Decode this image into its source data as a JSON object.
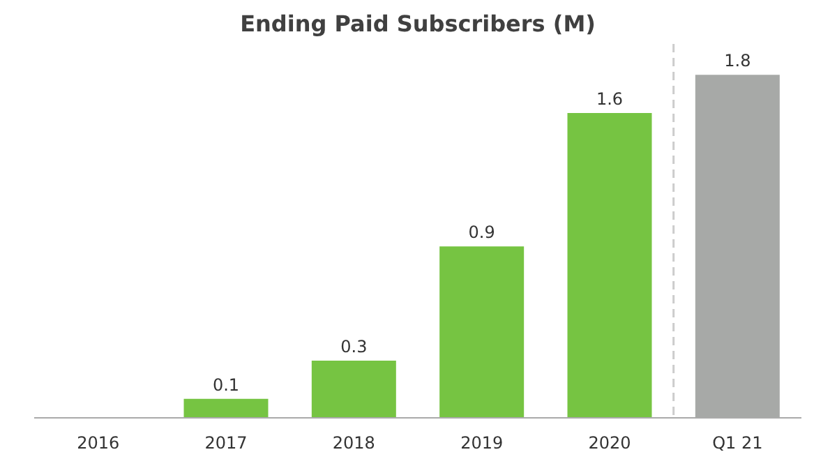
{
  "chart_data": {
    "type": "bar",
    "title": "Ending Paid Subscribers (M)",
    "categories": [
      "2016",
      "2017",
      "2018",
      "2019",
      "2020",
      "Q1 21"
    ],
    "values": [
      0,
      0.1,
      0.3,
      0.9,
      1.6,
      1.8
    ],
    "colors": [
      "#76c442",
      "#76c442",
      "#76c442",
      "#76c442",
      "#76c442",
      "#a7a9a7"
    ],
    "value_labels": [
      null,
      "0.1",
      "0.3",
      "0.9",
      "1.6",
      "1.8"
    ]
  }
}
